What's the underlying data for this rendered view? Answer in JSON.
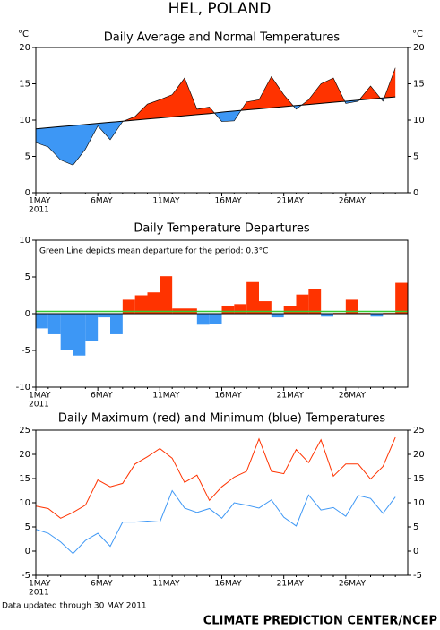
{
  "title": "HEL, POLAND",
  "chart_data": [
    {
      "type": "area",
      "title": "Daily Average and Normal Temperatures",
      "ylabel": "°C",
      "categories": [
        "1MAY",
        null,
        null,
        null,
        null,
        "6MAY",
        null,
        null,
        null,
        null,
        "11MAY",
        null,
        null,
        null,
        null,
        "16MAY",
        null,
        null,
        null,
        null,
        "21MAY",
        null,
        null,
        null,
        null,
        "26MAY",
        null,
        null,
        null,
        null
      ],
      "year": "2011",
      "values": [
        6.9,
        6.3,
        4.5,
        3.8,
        6.0,
        9.2,
        7.3,
        9.8,
        10.5,
        12.2,
        12.8,
        13.5,
        15.8,
        11.5,
        11.8,
        9.8,
        9.9,
        12.5,
        12.8,
        16.0,
        13.5,
        11.5,
        12.8,
        15.0,
        15.8,
        12.3,
        12.6,
        14.7,
        12.6,
        17.2
      ],
      "normal": [
        8.8,
        8.95,
        9.1,
        9.25,
        9.4,
        9.55,
        9.7,
        9.85,
        10.0,
        10.15,
        10.3,
        10.45,
        10.6,
        10.75,
        10.9,
        11.1,
        11.25,
        11.4,
        11.55,
        11.7,
        11.85,
        12.0,
        12.15,
        12.3,
        12.45,
        12.6,
        12.75,
        12.9,
        13.05,
        13.2
      ],
      "above_color": "#ff3300",
      "below_color": "#3d97f5",
      "normal_color": "#000000",
      "ylim": [
        0,
        20
      ],
      "yticks": [
        0,
        5,
        10,
        15,
        20
      ],
      "right_axis": true
    },
    {
      "type": "bar",
      "title": "Daily Temperature Departures",
      "annotation": "Green Line depicts mean departure for the period: 0.3°C",
      "categories": [
        "1MAY",
        null,
        null,
        null,
        null,
        "6MAY",
        null,
        null,
        null,
        null,
        "11MAY",
        null,
        null,
        null,
        null,
        "16MAY",
        null,
        null,
        null,
        null,
        "21MAY",
        null,
        null,
        null,
        null,
        "26MAY",
        null,
        null,
        null,
        null
      ],
      "year": "2011",
      "values": [
        -2.0,
        -2.8,
        -5.0,
        -5.7,
        -3.7,
        -0.5,
        -2.8,
        1.9,
        2.5,
        2.9,
        5.1,
        0.7,
        0.7,
        -1.5,
        -1.4,
        1.1,
        1.3,
        4.3,
        1.7,
        -0.5,
        1.0,
        2.6,
        3.4,
        -0.4,
        0.1,
        1.9,
        0.1,
        -0.4,
        0.1,
        4.2
      ],
      "positive_color": "#ff3300",
      "negative_color": "#3d97f5",
      "mean": 0.3,
      "mean_color": "#33cc33",
      "ylim": [
        -10,
        10
      ],
      "yticks": [
        -10,
        -5,
        0,
        5,
        10
      ],
      "right_axis": false
    },
    {
      "type": "line",
      "title": "Daily Maximum (red) and Minimum (blue) Temperatures",
      "categories": [
        "1MAY",
        null,
        null,
        null,
        null,
        "6MAY",
        null,
        null,
        null,
        null,
        "11MAY",
        null,
        null,
        null,
        null,
        "16MAY",
        null,
        null,
        null,
        null,
        "21MAY",
        null,
        null,
        null,
        null,
        "26MAY",
        null,
        null,
        null,
        null
      ],
      "year": "2011",
      "series": [
        {
          "color": "#ff3300",
          "values": [
            9.3,
            8.8,
            6.8,
            8.0,
            9.5,
            14.7,
            13.3,
            14.0,
            18.0,
            19.5,
            21.2,
            19.2,
            14.2,
            15.7,
            10.5,
            13.3,
            15.3,
            16.5,
            23.2,
            16.5,
            16.0,
            21.0,
            18.3,
            23.0,
            15.5,
            18.0,
            18.0,
            14.9,
            17.5,
            23.5
          ]
        },
        {
          "color": "#3d97f5",
          "values": [
            4.5,
            3.7,
            1.9,
            -0.5,
            2.2,
            3.7,
            1.0,
            6.0,
            6.0,
            6.2,
            6.0,
            12.5,
            8.9,
            8.0,
            8.8,
            6.8,
            10.0,
            9.5,
            8.9,
            10.6,
            7.0,
            5.2,
            11.6,
            8.5,
            9.0,
            7.2,
            11.5,
            10.9,
            7.8,
            11.2
          ]
        }
      ],
      "ylim": [
        -5,
        25
      ],
      "yticks": [
        -5,
        0,
        5,
        10,
        15,
        20,
        25
      ],
      "right_axis": true
    }
  ],
  "footer_note": "Data updated through 30 MAY 2011",
  "credit": "CLIMATE PREDICTION CENTER/NCEP"
}
